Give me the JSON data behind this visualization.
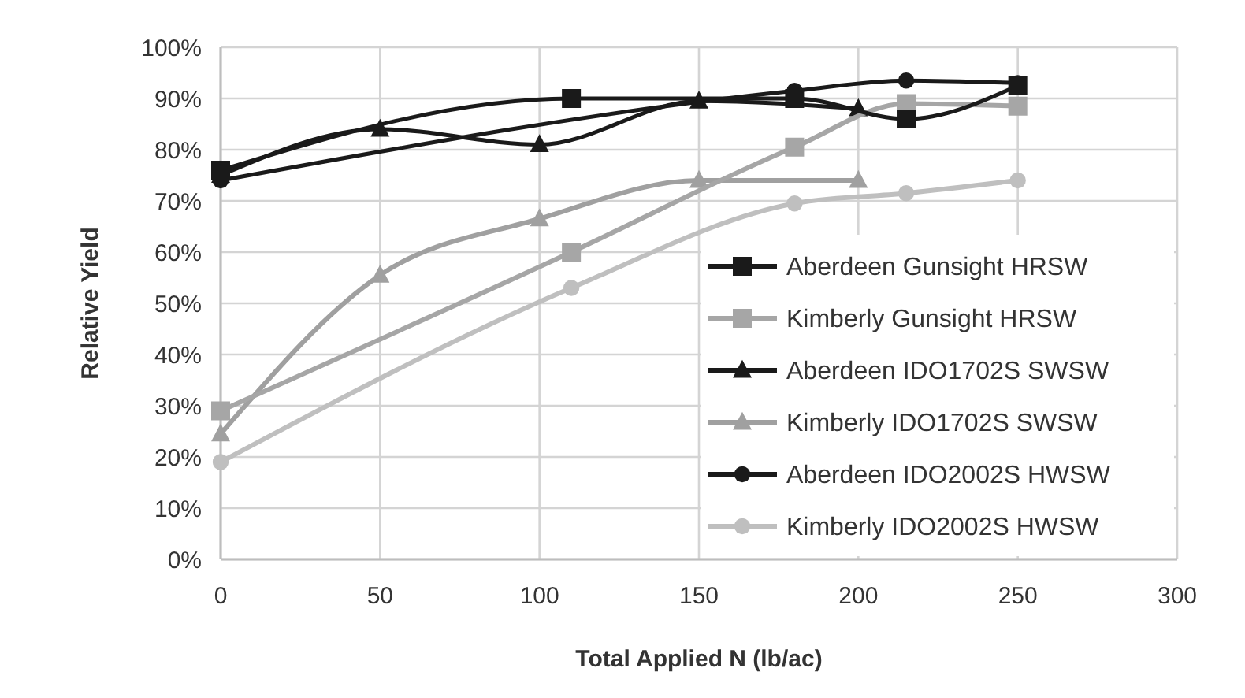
{
  "chart_data": {
    "type": "line",
    "xlabel": "Total Applied N (lb/ac)",
    "ylabel": "Relative Yield",
    "xlim": [
      0,
      300
    ],
    "xticks": [
      0,
      50,
      100,
      150,
      200,
      250,
      300
    ],
    "ylim": [
      0,
      100
    ],
    "yticks": [
      {
        "value": 0,
        "label": "0%"
      },
      {
        "value": 10,
        "label": "10%"
      },
      {
        "value": 20,
        "label": "20%"
      },
      {
        "value": 30,
        "label": "30%"
      },
      {
        "value": 40,
        "label": "40%"
      },
      {
        "value": 50,
        "label": "50%"
      },
      {
        "value": 60,
        "label": "60%"
      },
      {
        "value": 70,
        "label": "70%"
      },
      {
        "value": 80,
        "label": "80%"
      },
      {
        "value": 90,
        "label": "90%"
      },
      {
        "value": 100,
        "label": "100%"
      }
    ],
    "grid": true,
    "legend": "bottom right",
    "series": [
      {
        "name": "Aberdeen Gunsight HRSW",
        "color": "#1a1a1a",
        "marker": "square",
        "x": [
          0,
          110,
          180,
          215,
          250
        ],
        "values": [
          76,
          90,
          90,
          86,
          92.5
        ]
      },
      {
        "name": "Kimberly Gunsight HRSW",
        "color": "#a6a6a6",
        "marker": "square",
        "x": [
          0,
          110,
          180,
          215,
          250
        ],
        "values": [
          29,
          60,
          80.5,
          89,
          88.5
        ]
      },
      {
        "name": "Aberdeen IDO1702S SWSW",
        "color": "#1a1a1a",
        "marker": "triangle",
        "x": [
          0,
          50,
          100,
          150,
          200
        ],
        "values": [
          75,
          84,
          81,
          89.5,
          88
        ]
      },
      {
        "name": "Kimberly IDO1702S SWSW",
        "color": "#a0a0a0",
        "marker": "triangle",
        "x": [
          0,
          50,
          100,
          150,
          200
        ],
        "values": [
          24.5,
          55.5,
          66.5,
          74,
          74
        ]
      },
      {
        "name": "Aberdeen IDO2002S HWSW",
        "color": "#1a1a1a",
        "marker": "circle",
        "x": [
          0,
          180,
          215,
          250
        ],
        "values": [
          74,
          91.5,
          93.5,
          93
        ]
      },
      {
        "name": "Kimberly IDO2002S HWSW",
        "color": "#bfbfbf",
        "marker": "circle",
        "x": [
          0,
          110,
          180,
          215,
          250
        ],
        "values": [
          19,
          53,
          69.5,
          71.5,
          74
        ]
      }
    ]
  }
}
